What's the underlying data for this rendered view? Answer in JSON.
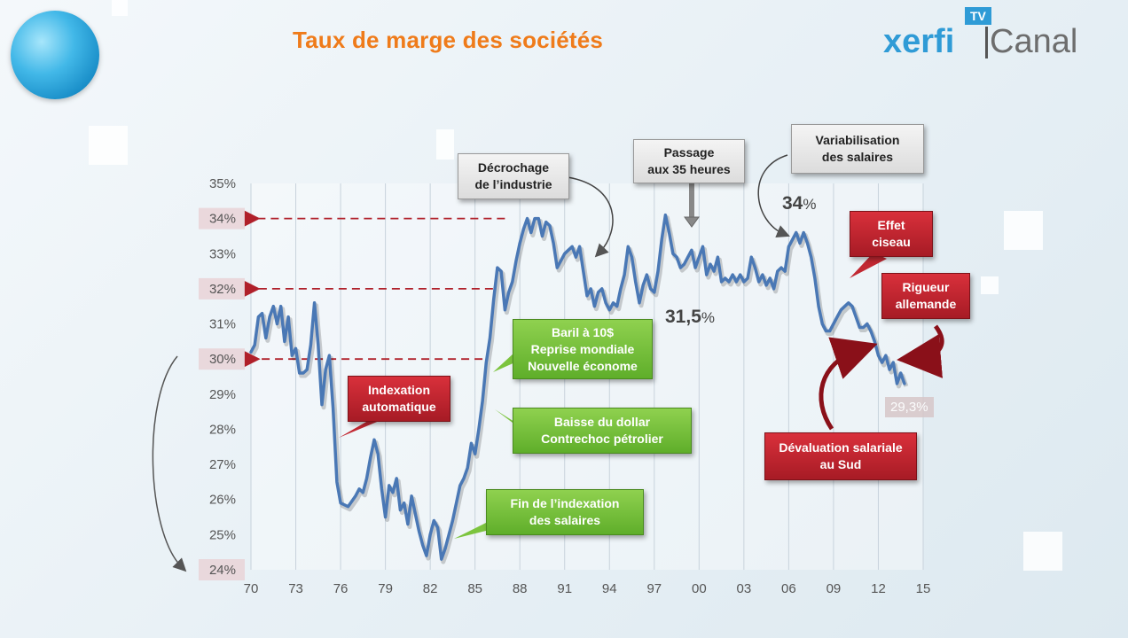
{
  "header": {
    "title": "Taux de marge des sociétés",
    "logo_main": "xerfi",
    "logo_secondary": "Canal",
    "logo_badge": "TV"
  },
  "chart_data": {
    "type": "line",
    "title": "Taux de marge des sociétés",
    "xlabel": "",
    "ylabel": "",
    "x_ticks": [
      "70",
      "73",
      "76",
      "79",
      "82",
      "85",
      "88",
      "91",
      "94",
      "97",
      "00",
      "03",
      "06",
      "09",
      "12",
      "15"
    ],
    "y_ticks": [
      "35%",
      "34%",
      "33%",
      "32%",
      "31%",
      "30%",
      "29%",
      "28%",
      "27%",
      "26%",
      "25%",
      "24%"
    ],
    "xlim": [
      1970,
      2015
    ],
    "ylim": [
      24,
      35
    ],
    "grid": "vertical",
    "highlighted_y_ticks": [
      "34%",
      "32%",
      "30%",
      "24%"
    ],
    "series": [
      {
        "color": "#4a78b5",
        "points": [
          [
            1970.0,
            30.2
          ],
          [
            1970.25,
            30.4
          ],
          [
            1970.5,
            31.2
          ],
          [
            1970.75,
            31.3
          ],
          [
            1971.0,
            30.6
          ],
          [
            1971.25,
            31.2
          ],
          [
            1971.5,
            31.5
          ],
          [
            1971.75,
            31.0
          ],
          [
            1972.0,
            31.5
          ],
          [
            1972.25,
            30.5
          ],
          [
            1972.5,
            31.2
          ],
          [
            1972.75,
            30.1
          ],
          [
            1973.0,
            30.3
          ],
          [
            1973.25,
            29.6
          ],
          [
            1973.5,
            29.6
          ],
          [
            1973.75,
            29.7
          ],
          [
            1974.0,
            30.4
          ],
          [
            1974.25,
            31.6
          ],
          [
            1974.5,
            30.4
          ],
          [
            1974.75,
            28.7
          ],
          [
            1975.0,
            29.7
          ],
          [
            1975.25,
            30.1
          ],
          [
            1975.5,
            28.6
          ],
          [
            1975.75,
            26.5
          ],
          [
            1976.0,
            25.9
          ],
          [
            1976.5,
            25.8
          ],
          [
            1977.0,
            26.1
          ],
          [
            1977.25,
            26.3
          ],
          [
            1977.5,
            26.2
          ],
          [
            1977.75,
            26.6
          ],
          [
            1978.0,
            27.2
          ],
          [
            1978.25,
            27.7
          ],
          [
            1978.5,
            27.3
          ],
          [
            1978.75,
            26.3
          ],
          [
            1979.0,
            25.5
          ],
          [
            1979.25,
            26.4
          ],
          [
            1979.5,
            26.2
          ],
          [
            1979.75,
            26.6
          ],
          [
            1980.0,
            25.7
          ],
          [
            1980.25,
            25.9
          ],
          [
            1980.5,
            25.3
          ],
          [
            1980.75,
            26.1
          ],
          [
            1981.0,
            25.6
          ],
          [
            1981.25,
            25.1
          ],
          [
            1981.5,
            24.7
          ],
          [
            1981.75,
            24.4
          ],
          [
            1982.0,
            25.0
          ],
          [
            1982.25,
            25.4
          ],
          [
            1982.5,
            25.2
          ],
          [
            1982.75,
            24.3
          ],
          [
            1983.0,
            24.6
          ],
          [
            1983.25,
            25.0
          ],
          [
            1983.5,
            25.4
          ],
          [
            1983.75,
            25.9
          ],
          [
            1984.0,
            26.4
          ],
          [
            1984.25,
            26.6
          ],
          [
            1984.5,
            26.9
          ],
          [
            1984.75,
            27.6
          ],
          [
            1985.0,
            27.3
          ],
          [
            1985.25,
            28.0
          ],
          [
            1985.5,
            28.8
          ],
          [
            1985.75,
            29.9
          ],
          [
            1986.0,
            30.6
          ],
          [
            1986.25,
            31.7
          ],
          [
            1986.5,
            32.6
          ],
          [
            1986.75,
            32.5
          ],
          [
            1987.0,
            31.4
          ],
          [
            1987.25,
            31.9
          ],
          [
            1987.5,
            32.2
          ],
          [
            1987.75,
            32.8
          ],
          [
            1988.0,
            33.3
          ],
          [
            1988.25,
            33.7
          ],
          [
            1988.5,
            34.0
          ],
          [
            1988.75,
            33.6
          ],
          [
            1989.0,
            34.0
          ],
          [
            1989.25,
            34.0
          ],
          [
            1989.5,
            33.5
          ],
          [
            1989.75,
            33.9
          ],
          [
            1990.0,
            33.8
          ],
          [
            1990.25,
            33.3
          ],
          [
            1990.5,
            32.6
          ],
          [
            1990.75,
            32.8
          ],
          [
            1991.0,
            33.0
          ],
          [
            1991.25,
            33.1
          ],
          [
            1991.5,
            33.2
          ],
          [
            1991.75,
            32.9
          ],
          [
            1992.0,
            33.2
          ],
          [
            1992.25,
            32.5
          ],
          [
            1992.5,
            31.8
          ],
          [
            1992.75,
            32.0
          ],
          [
            1993.0,
            31.5
          ],
          [
            1993.25,
            31.9
          ],
          [
            1993.5,
            32.0
          ],
          [
            1993.75,
            31.6
          ],
          [
            1994.0,
            31.4
          ],
          [
            1994.25,
            31.6
          ],
          [
            1994.5,
            31.5
          ],
          [
            1994.75,
            32.0
          ],
          [
            1995.0,
            32.4
          ],
          [
            1995.25,
            33.2
          ],
          [
            1995.5,
            32.9
          ],
          [
            1995.75,
            32.2
          ],
          [
            1996.0,
            31.6
          ],
          [
            1996.25,
            32.1
          ],
          [
            1996.5,
            32.4
          ],
          [
            1996.75,
            32.0
          ],
          [
            1997.0,
            31.9
          ],
          [
            1997.25,
            32.5
          ],
          [
            1997.5,
            33.4
          ],
          [
            1997.75,
            34.1
          ],
          [
            1998.0,
            33.6
          ],
          [
            1998.25,
            33.0
          ],
          [
            1998.5,
            32.9
          ],
          [
            1998.75,
            32.6
          ],
          [
            1999.0,
            32.7
          ],
          [
            1999.25,
            32.9
          ],
          [
            1999.5,
            33.1
          ],
          [
            1999.75,
            32.6
          ],
          [
            2000.0,
            32.9
          ],
          [
            2000.25,
            33.2
          ],
          [
            2000.5,
            32.4
          ],
          [
            2000.75,
            32.7
          ],
          [
            2001.0,
            32.5
          ],
          [
            2001.25,
            32.9
          ],
          [
            2001.5,
            32.2
          ],
          [
            2001.75,
            32.3
          ],
          [
            2002.0,
            32.2
          ],
          [
            2002.25,
            32.4
          ],
          [
            2002.5,
            32.2
          ],
          [
            2002.75,
            32.4
          ],
          [
            2003.0,
            32.2
          ],
          [
            2003.25,
            32.3
          ],
          [
            2003.5,
            32.9
          ],
          [
            2003.75,
            32.6
          ],
          [
            2004.0,
            32.2
          ],
          [
            2004.25,
            32.4
          ],
          [
            2004.5,
            32.1
          ],
          [
            2004.75,
            32.3
          ],
          [
            2005.0,
            32.0
          ],
          [
            2005.25,
            32.5
          ],
          [
            2005.5,
            32.6
          ],
          [
            2005.75,
            32.5
          ],
          [
            2006.0,
            33.2
          ],
          [
            2006.25,
            33.4
          ],
          [
            2006.5,
            33.6
          ],
          [
            2006.75,
            33.3
          ],
          [
            2007.0,
            33.6
          ],
          [
            2007.25,
            33.3
          ],
          [
            2007.5,
            32.9
          ],
          [
            2007.75,
            32.3
          ],
          [
            2008.0,
            31.5
          ],
          [
            2008.25,
            31.0
          ],
          [
            2008.5,
            30.8
          ],
          [
            2008.75,
            30.8
          ],
          [
            2009.0,
            31.0
          ],
          [
            2009.25,
            31.2
          ],
          [
            2009.5,
            31.4
          ],
          [
            2009.75,
            31.5
          ],
          [
            2010.0,
            31.6
          ],
          [
            2010.25,
            31.5
          ],
          [
            2010.5,
            31.2
          ],
          [
            2010.75,
            30.9
          ],
          [
            2011.0,
            30.9
          ],
          [
            2011.25,
            31.0
          ],
          [
            2011.5,
            30.8
          ],
          [
            2011.75,
            30.5
          ],
          [
            2012.0,
            30.1
          ],
          [
            2012.25,
            29.9
          ],
          [
            2012.5,
            30.1
          ],
          [
            2012.75,
            29.7
          ],
          [
            2013.0,
            29.9
          ],
          [
            2013.25,
            29.3
          ],
          [
            2013.5,
            29.6
          ],
          [
            2013.75,
            29.3
          ]
        ]
      }
    ],
    "reference_lines": [
      {
        "y": 34,
        "x_end": 1987.0,
        "color": "#b0202a"
      },
      {
        "y": 32,
        "x_end": 1986.2,
        "color": "#b0202a"
      },
      {
        "y": 30,
        "x_end": 1985.5,
        "color": "#b0202a"
      }
    ],
    "value_annotations": {
      "high": {
        "value": "34",
        "unit": "%"
      },
      "mid": {
        "value": "31,5",
        "unit": "%"
      },
      "end": "29,3%"
    },
    "callouts": [
      {
        "key": "decrochage",
        "text": [
          "Décrochage",
          "de l’industrie"
        ],
        "style": "grey"
      },
      {
        "key": "passage",
        "text": [
          "Passage",
          "aux 35 heures"
        ],
        "style": "grey"
      },
      {
        "key": "variabilisation",
        "text": [
          "Variabilisation",
          "des salaires"
        ],
        "style": "grey"
      },
      {
        "key": "indexation",
        "text": [
          "Indexation",
          "automatique"
        ],
        "style": "red"
      },
      {
        "key": "effet",
        "text": [
          "Effet",
          "ciseau"
        ],
        "style": "red"
      },
      {
        "key": "rigueur",
        "text": [
          "Rigueur",
          "allemande"
        ],
        "style": "red"
      },
      {
        "key": "devaluation",
        "text": [
          "Dévaluation salariale",
          "au Sud"
        ],
        "style": "red"
      },
      {
        "key": "baril",
        "text": [
          "Baril à 10$",
          "Reprise mondiale",
          "Nouvelle économe"
        ],
        "style": "green"
      },
      {
        "key": "baisse",
        "text": [
          "Baisse du dollar",
          "Contrechoc pétrolier"
        ],
        "style": "green"
      },
      {
        "key": "fin",
        "text": [
          "Fin de l’indexation",
          "des salaires"
        ],
        "style": "green"
      }
    ]
  }
}
